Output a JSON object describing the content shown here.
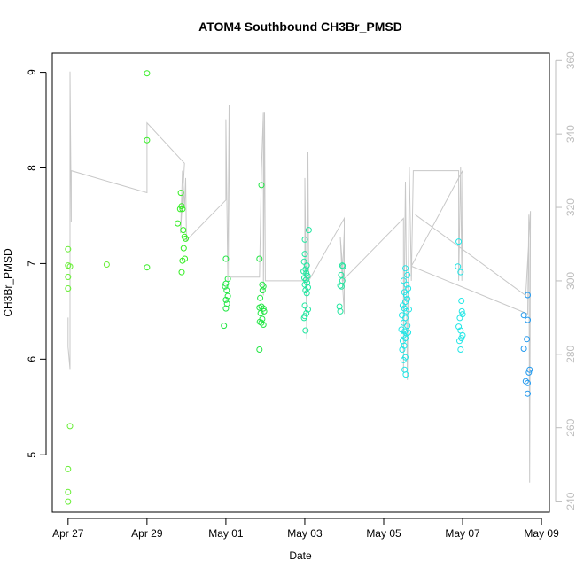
{
  "chart_data": {
    "type": "scatter",
    "title": "ATOM4 Southbound CH3Br_PMSD",
    "xlabel": "Date",
    "ylabel": "CH3Br_PMSD",
    "x_ticks": [
      "Apr 27",
      "Apr 29",
      "May 01",
      "May 03",
      "May 05",
      "May 07",
      "May 09"
    ],
    "y_ticks": [
      "5",
      "6",
      "7",
      "8",
      "9"
    ],
    "y2_ticks": [
      "240",
      "260",
      "280",
      "300",
      "320",
      "340",
      "360"
    ],
    "xlim_days": [
      26.6,
      39.2
    ],
    "ylim": [
      4.4,
      9.2
    ],
    "y2lim": [
      237,
      362
    ],
    "grid": false,
    "legend": "none",
    "colors": {
      "line": "#c8c8c8",
      "frame": "#000000",
      "right_axis": "#bdbdbd",
      "green": "#33ee22",
      "green2": "#66ee33",
      "green3": "#22e644",
      "teal": "#22e6a0",
      "cyan": "#22e6e6",
      "blue": "#2299ee"
    },
    "series": [
      {
        "type": "scatter",
        "points": [
          {
            "x": 27.0,
            "y": 7.15,
            "c": "green2"
          },
          {
            "x": 27.0,
            "y": 6.98,
            "c": "green2"
          },
          {
            "x": 27.05,
            "y": 6.97,
            "c": "green2"
          },
          {
            "x": 27.0,
            "y": 6.86,
            "c": "green2"
          },
          {
            "x": 27.0,
            "y": 6.74,
            "c": "green2"
          },
          {
            "x": 27.05,
            "y": 5.3,
            "c": "green2"
          },
          {
            "x": 27.0,
            "y": 4.85,
            "c": "green2"
          },
          {
            "x": 27.0,
            "y": 4.61,
            "c": "green2"
          },
          {
            "x": 27.0,
            "y": 4.51,
            "c": "green2"
          },
          {
            "x": 27.98,
            "y": 6.99,
            "c": "green2"
          },
          {
            "x": 29.0,
            "y": 8.99,
            "c": "green"
          },
          {
            "x": 29.0,
            "y": 8.29,
            "c": "green"
          },
          {
            "x": 29.0,
            "y": 6.96,
            "c": "green"
          },
          {
            "x": 29.78,
            "y": 7.42,
            "c": "green"
          },
          {
            "x": 29.86,
            "y": 7.74,
            "c": "green"
          },
          {
            "x": 29.88,
            "y": 7.6,
            "c": "green"
          },
          {
            "x": 29.84,
            "y": 7.57,
            "c": "green"
          },
          {
            "x": 29.9,
            "y": 7.57,
            "c": "green"
          },
          {
            "x": 29.92,
            "y": 7.35,
            "c": "green"
          },
          {
            "x": 29.95,
            "y": 7.28,
            "c": "green"
          },
          {
            "x": 29.98,
            "y": 7.26,
            "c": "green"
          },
          {
            "x": 29.93,
            "y": 7.16,
            "c": "green"
          },
          {
            "x": 29.96,
            "y": 7.05,
            "c": "green"
          },
          {
            "x": 29.9,
            "y": 7.03,
            "c": "green"
          },
          {
            "x": 29.88,
            "y": 6.91,
            "c": "green"
          },
          {
            "x": 31.0,
            "y": 7.05,
            "c": "green3"
          },
          {
            "x": 31.05,
            "y": 6.84,
            "c": "green3"
          },
          {
            "x": 31.0,
            "y": 6.79,
            "c": "green3"
          },
          {
            "x": 30.98,
            "y": 6.76,
            "c": "green3"
          },
          {
            "x": 31.02,
            "y": 6.72,
            "c": "green3"
          },
          {
            "x": 31.05,
            "y": 6.66,
            "c": "green3"
          },
          {
            "x": 31.0,
            "y": 6.62,
            "c": "green3"
          },
          {
            "x": 31.03,
            "y": 6.58,
            "c": "green3"
          },
          {
            "x": 31.0,
            "y": 6.53,
            "c": "green3"
          },
          {
            "x": 30.95,
            "y": 6.35,
            "c": "green3"
          },
          {
            "x": 31.85,
            "y": 7.05,
            "c": "green3"
          },
          {
            "x": 31.9,
            "y": 7.82,
            "c": "green3"
          },
          {
            "x": 31.92,
            "y": 6.78,
            "c": "green3"
          },
          {
            "x": 31.95,
            "y": 6.76,
            "c": "green3"
          },
          {
            "x": 31.93,
            "y": 6.72,
            "c": "green3"
          },
          {
            "x": 31.87,
            "y": 6.64,
            "c": "green3"
          },
          {
            "x": 31.9,
            "y": 6.55,
            "c": "green3"
          },
          {
            "x": 31.85,
            "y": 6.54,
            "c": "green3"
          },
          {
            "x": 31.95,
            "y": 6.53,
            "c": "green3"
          },
          {
            "x": 31.97,
            "y": 6.5,
            "c": "green3"
          },
          {
            "x": 31.88,
            "y": 6.48,
            "c": "green3"
          },
          {
            "x": 31.92,
            "y": 6.42,
            "c": "green3"
          },
          {
            "x": 31.86,
            "y": 6.39,
            "c": "green3"
          },
          {
            "x": 31.9,
            "y": 6.38,
            "c": "green3"
          },
          {
            "x": 31.95,
            "y": 6.36,
            "c": "green3"
          },
          {
            "x": 31.85,
            "y": 6.1,
            "c": "green3"
          },
          {
            "x": 33.0,
            "y": 7.25,
            "c": "teal"
          },
          {
            "x": 33.1,
            "y": 7.35,
            "c": "teal"
          },
          {
            "x": 33.0,
            "y": 7.1,
            "c": "teal"
          },
          {
            "x": 32.98,
            "y": 7.02,
            "c": "teal"
          },
          {
            "x": 33.05,
            "y": 6.98,
            "c": "teal"
          },
          {
            "x": 33.02,
            "y": 6.94,
            "c": "teal"
          },
          {
            "x": 32.97,
            "y": 6.92,
            "c": "teal"
          },
          {
            "x": 33.04,
            "y": 6.9,
            "c": "teal"
          },
          {
            "x": 33.07,
            "y": 6.87,
            "c": "teal"
          },
          {
            "x": 32.99,
            "y": 6.85,
            "c": "teal"
          },
          {
            "x": 33.03,
            "y": 6.83,
            "c": "teal"
          },
          {
            "x": 33.06,
            "y": 6.8,
            "c": "teal"
          },
          {
            "x": 33.0,
            "y": 6.78,
            "c": "teal"
          },
          {
            "x": 33.08,
            "y": 6.75,
            "c": "teal"
          },
          {
            "x": 33.02,
            "y": 6.72,
            "c": "teal"
          },
          {
            "x": 33.05,
            "y": 6.69,
            "c": "teal"
          },
          {
            "x": 33.0,
            "y": 6.56,
            "c": "teal"
          },
          {
            "x": 33.08,
            "y": 6.52,
            "c": "teal"
          },
          {
            "x": 33.04,
            "y": 6.48,
            "c": "teal"
          },
          {
            "x": 33.0,
            "y": 6.45,
            "c": "teal"
          },
          {
            "x": 32.98,
            "y": 6.43,
            "c": "teal"
          },
          {
            "x": 33.02,
            "y": 6.3,
            "c": "teal"
          },
          {
            "x": 33.95,
            "y": 6.98,
            "c": "teal"
          },
          {
            "x": 33.97,
            "y": 6.97,
            "c": "teal"
          },
          {
            "x": 33.92,
            "y": 6.88,
            "c": "teal"
          },
          {
            "x": 33.95,
            "y": 6.82,
            "c": "teal"
          },
          {
            "x": 33.9,
            "y": 6.77,
            "c": "teal"
          },
          {
            "x": 33.93,
            "y": 6.76,
            "c": "teal"
          },
          {
            "x": 33.88,
            "y": 6.55,
            "c": "teal"
          },
          {
            "x": 33.9,
            "y": 6.5,
            "c": "teal"
          },
          {
            "x": 35.55,
            "y": 6.95,
            "c": "cyan"
          },
          {
            "x": 35.6,
            "y": 6.88,
            "c": "cyan"
          },
          {
            "x": 35.5,
            "y": 6.82,
            "c": "cyan"
          },
          {
            "x": 35.58,
            "y": 6.78,
            "c": "cyan"
          },
          {
            "x": 35.62,
            "y": 6.74,
            "c": "cyan"
          },
          {
            "x": 35.52,
            "y": 6.7,
            "c": "cyan"
          },
          {
            "x": 35.57,
            "y": 6.67,
            "c": "cyan"
          },
          {
            "x": 35.6,
            "y": 6.63,
            "c": "cyan"
          },
          {
            "x": 35.55,
            "y": 6.6,
            "c": "cyan"
          },
          {
            "x": 35.48,
            "y": 6.56,
            "c": "cyan"
          },
          {
            "x": 35.52,
            "y": 6.53,
            "c": "cyan"
          },
          {
            "x": 35.58,
            "y": 6.5,
            "c": "cyan"
          },
          {
            "x": 35.46,
            "y": 6.46,
            "c": "cyan"
          },
          {
            "x": 35.55,
            "y": 6.43,
            "c": "cyan"
          },
          {
            "x": 35.5,
            "y": 6.38,
            "c": "cyan"
          },
          {
            "x": 35.6,
            "y": 6.35,
            "c": "cyan"
          },
          {
            "x": 35.45,
            "y": 6.31,
            "c": "cyan"
          },
          {
            "x": 35.53,
            "y": 6.29,
            "c": "cyan"
          },
          {
            "x": 35.58,
            "y": 6.27,
            "c": "cyan"
          },
          {
            "x": 35.5,
            "y": 6.25,
            "c": "cyan"
          },
          {
            "x": 35.55,
            "y": 6.22,
            "c": "cyan"
          },
          {
            "x": 35.48,
            "y": 6.19,
            "c": "cyan"
          },
          {
            "x": 35.52,
            "y": 6.14,
            "c": "cyan"
          },
          {
            "x": 35.47,
            "y": 6.1,
            "c": "cyan"
          },
          {
            "x": 35.55,
            "y": 6.02,
            "c": "cyan"
          },
          {
            "x": 35.5,
            "y": 5.99,
            "c": "cyan"
          },
          {
            "x": 35.53,
            "y": 5.89,
            "c": "cyan"
          },
          {
            "x": 35.56,
            "y": 5.84,
            "c": "cyan"
          },
          {
            "x": 35.62,
            "y": 6.28,
            "c": "cyan"
          },
          {
            "x": 35.64,
            "y": 6.52,
            "c": "cyan"
          },
          {
            "x": 36.9,
            "y": 7.23,
            "c": "cyan"
          },
          {
            "x": 36.88,
            "y": 6.97,
            "c": "cyan"
          },
          {
            "x": 36.95,
            "y": 6.91,
            "c": "cyan"
          },
          {
            "x": 36.97,
            "y": 6.61,
            "c": "cyan"
          },
          {
            "x": 36.98,
            "y": 6.5,
            "c": "cyan"
          },
          {
            "x": 37.0,
            "y": 6.47,
            "c": "cyan"
          },
          {
            "x": 36.93,
            "y": 6.43,
            "c": "cyan"
          },
          {
            "x": 36.9,
            "y": 6.34,
            "c": "cyan"
          },
          {
            "x": 36.95,
            "y": 6.3,
            "c": "cyan"
          },
          {
            "x": 37.0,
            "y": 6.25,
            "c": "cyan"
          },
          {
            "x": 36.97,
            "y": 6.22,
            "c": "cyan"
          },
          {
            "x": 36.92,
            "y": 6.19,
            "c": "cyan"
          },
          {
            "x": 36.95,
            "y": 6.1,
            "c": "cyan"
          },
          {
            "x": 38.55,
            "y": 6.46,
            "c": "blue"
          },
          {
            "x": 38.65,
            "y": 6.67,
            "c": "blue"
          },
          {
            "x": 38.65,
            "y": 6.41,
            "c": "blue"
          },
          {
            "x": 38.63,
            "y": 6.21,
            "c": "blue"
          },
          {
            "x": 38.55,
            "y": 6.11,
            "c": "blue"
          },
          {
            "x": 38.7,
            "y": 5.89,
            "c": "blue"
          },
          {
            "x": 38.68,
            "y": 5.86,
            "c": "blue"
          },
          {
            "x": 38.6,
            "y": 5.77,
            "c": "blue"
          },
          {
            "x": 38.65,
            "y": 5.75,
            "c": "blue"
          },
          {
            "x": 38.65,
            "y": 5.64,
            "c": "blue"
          }
        ]
      },
      {
        "type": "line",
        "axis": "right",
        "points": [
          [
            27.0,
            290
          ],
          [
            27.0,
            282
          ],
          [
            27.05,
            276
          ],
          [
            27.05,
            357
          ],
          [
            27.08,
            316
          ],
          [
            27.08,
            330
          ],
          [
            29.0,
            324
          ],
          [
            29.0,
            343
          ],
          [
            29.95,
            332
          ],
          [
            29.85,
            313
          ],
          [
            29.9,
            330
          ],
          [
            29.95,
            320
          ],
          [
            29.98,
            328
          ],
          [
            30.0,
            311
          ],
          [
            31.0,
            322
          ],
          [
            31.0,
            344
          ],
          [
            31.05,
            300
          ],
          [
            31.08,
            348
          ],
          [
            31.1,
            301
          ],
          [
            31.85,
            301
          ],
          [
            31.9,
            330
          ],
          [
            31.95,
            346
          ],
          [
            31.95,
            296
          ],
          [
            31.98,
            346
          ],
          [
            32.0,
            300
          ],
          [
            33.0,
            300
          ],
          [
            33.0,
            328
          ],
          [
            33.05,
            284
          ],
          [
            33.08,
            335
          ],
          [
            33.1,
            300
          ],
          [
            34.0,
            317
          ],
          [
            34.0,
            298
          ],
          [
            33.9,
            312
          ],
          [
            33.95,
            300
          ],
          [
            34.0,
            314
          ],
          [
            34.0,
            291
          ],
          [
            33.95,
            300
          ],
          [
            35.5,
            317
          ],
          [
            35.5,
            275
          ],
          [
            35.55,
            327
          ],
          [
            35.6,
            273
          ],
          [
            35.65,
            331
          ],
          [
            35.7,
            300
          ],
          [
            35.75,
            330
          ],
          [
            36.9,
            330
          ],
          [
            36.9,
            300
          ],
          [
            36.95,
            331
          ],
          [
            36.98,
            300
          ],
          [
            37.0,
            330
          ],
          [
            35.7,
            304
          ],
          [
            38.65,
            291
          ],
          [
            38.68,
            318
          ],
          [
            38.7,
            245
          ],
          [
            38.72,
            319
          ],
          [
            38.6,
            296
          ],
          [
            35.8,
            318
          ]
        ]
      }
    ]
  }
}
